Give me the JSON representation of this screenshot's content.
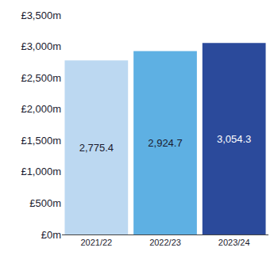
{
  "chart_data": {
    "type": "bar",
    "categories": [
      "2021/22",
      "2022/23",
      "2023/24"
    ],
    "values": [
      2775.4,
      2924.7,
      3054.3
    ],
    "value_labels": [
      "2,775.4",
      "2,924.7",
      "3,054.3"
    ],
    "colors": [
      "#bcd8f1",
      "#5eb0e3",
      "#2b4a9b"
    ],
    "data_labels": true,
    "grid": false,
    "ylim": [
      0,
      3500
    ],
    "yticks": [
      {
        "value": 0,
        "label": "£0m"
      },
      {
        "value": 500,
        "label": "£500m"
      },
      {
        "value": 1000,
        "label": "£1,000m"
      },
      {
        "value": 1500,
        "label": "£1,500m"
      },
      {
        "value": 2000,
        "label": "£2,000m"
      },
      {
        "value": 2500,
        "label": "£2,500m"
      },
      {
        "value": 3000,
        "label": "£3,000m"
      },
      {
        "value": 3500,
        "label": "£3,500m"
      }
    ]
  }
}
